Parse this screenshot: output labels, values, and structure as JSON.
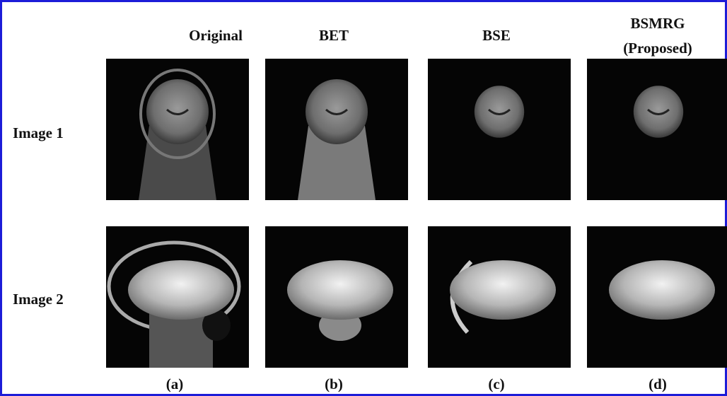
{
  "column_headers": [
    [
      "Original"
    ],
    [
      "BET"
    ],
    [
      "BSE"
    ],
    [
      "BSMRG",
      "(Proposed)"
    ]
  ],
  "row_labels": [
    "Image 1",
    "Image 2"
  ],
  "panel_labels": [
    "(a)",
    "(b)",
    "(c)",
    "(d)"
  ]
}
